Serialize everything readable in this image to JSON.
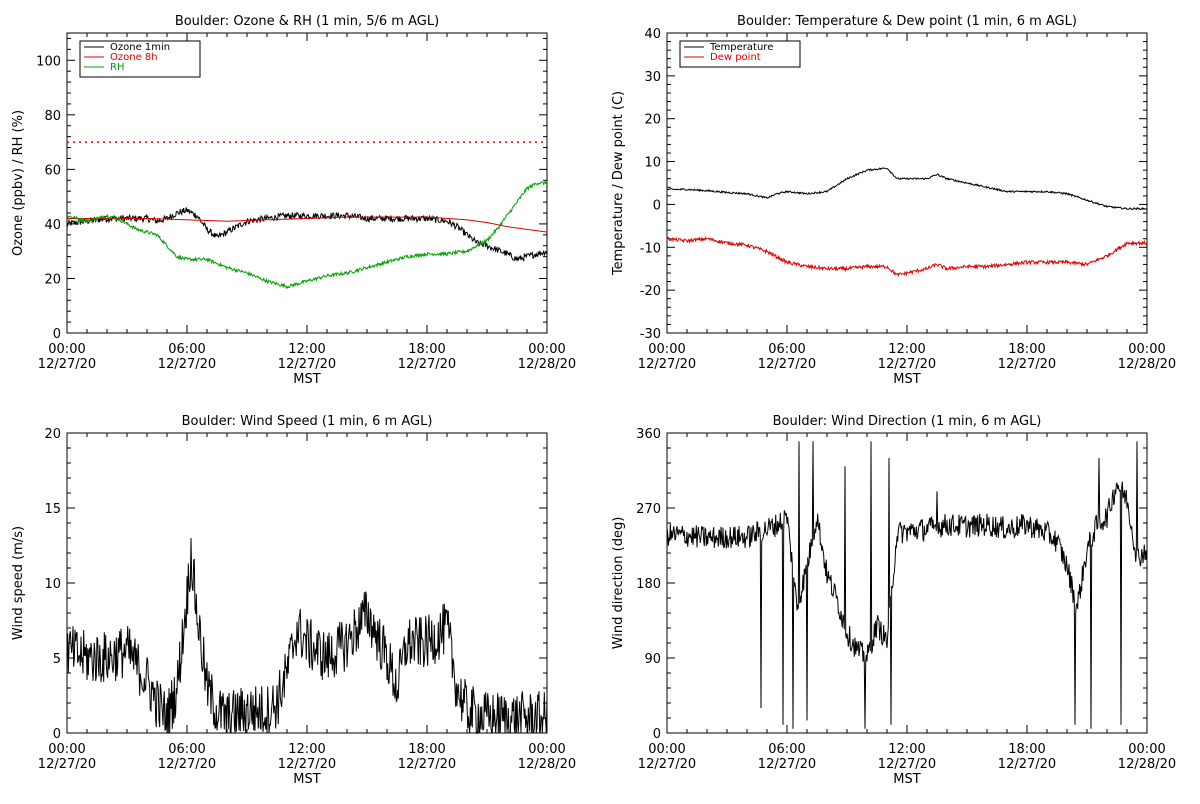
{
  "chart_data": [
    {
      "type": "line",
      "title": "Boulder: Ozone & RH (1 min, 5/6 m AGL)",
      "xlabel": "MST",
      "ylabel": "Ozone (ppbv) / RH (%)",
      "xlim": [
        "2020-12-27T00:00",
        "2020-12-28T00:00"
      ],
      "ylim": [
        0,
        110
      ],
      "yticks": [
        0,
        20,
        40,
        60,
        80,
        100
      ],
      "xtick_labels": [
        [
          "00:00",
          "12/27/20"
        ],
        [
          "06:00",
          "12/27/20"
        ],
        [
          "12:00",
          "12/27/20"
        ],
        [
          "18:00",
          "12/27/20"
        ],
        [
          "00:00",
          "12/28/20"
        ]
      ],
      "legend_position": "top-left",
      "reference_line": {
        "y": 70,
        "color": "#e00000",
        "style": "dotted"
      },
      "series": [
        {
          "name": "Ozone 1min",
          "color": "#000000",
          "noise": 1.2,
          "points": [
            [
              0,
              40
            ],
            [
              1,
              41
            ],
            [
              2,
              42
            ],
            [
              3,
              42
            ],
            [
              4,
              42
            ],
            [
              4.5,
              41
            ],
            [
              5,
              42
            ],
            [
              5.5,
              44
            ],
            [
              6,
              45
            ],
            [
              6.5,
              43
            ],
            [
              7,
              38
            ],
            [
              7.5,
              35
            ],
            [
              8,
              37
            ],
            [
              8.5,
              39
            ],
            [
              9,
              41
            ],
            [
              10,
              42
            ],
            [
              11,
              43
            ],
            [
              12,
              43
            ],
            [
              13,
              43
            ],
            [
              14,
              43
            ],
            [
              15,
              42
            ],
            [
              16,
              42
            ],
            [
              17,
              42
            ],
            [
              18,
              42
            ],
            [
              19,
              41
            ],
            [
              19.5,
              39
            ],
            [
              20,
              36
            ],
            [
              20.5,
              33
            ],
            [
              21,
              32
            ],
            [
              22,
              29
            ],
            [
              22.5,
              27
            ],
            [
              23,
              28
            ],
            [
              24,
              30
            ]
          ]
        },
        {
          "name": "Ozone 8h",
          "color": "#e00000",
          "noise": 0,
          "points": [
            [
              0,
              42
            ],
            [
              2,
              42
            ],
            [
              4,
              42
            ],
            [
              6,
              41.5
            ],
            [
              8,
              41
            ],
            [
              10,
              41.5
            ],
            [
              12,
              42
            ],
            [
              14,
              42.5
            ],
            [
              16,
              42.5
            ],
            [
              18,
              42.5
            ],
            [
              19,
              42
            ],
            [
              20,
              41.5
            ],
            [
              21,
              40.5
            ],
            [
              22,
              39
            ],
            [
              23,
              38
            ],
            [
              24,
              37
            ]
          ]
        },
        {
          "name": "RH",
          "color": "#00a000",
          "noise": 0.6,
          "points": [
            [
              0,
              43
            ],
            [
              1,
              41
            ],
            [
              2,
              43
            ],
            [
              2.5,
              42
            ],
            [
              3,
              40
            ],
            [
              3.5,
              38
            ],
            [
              4,
              37
            ],
            [
              4.5,
              36
            ],
            [
              5,
              32
            ],
            [
              5.5,
              28
            ],
            [
              6,
              27
            ],
            [
              7,
              27
            ],
            [
              8,
              24
            ],
            [
              9,
              22
            ],
            [
              10,
              19
            ],
            [
              11,
              17
            ],
            [
              12,
              19
            ],
            [
              13,
              21
            ],
            [
              14,
              22
            ],
            [
              15,
              24
            ],
            [
              16,
              26
            ],
            [
              17,
              28
            ],
            [
              18,
              29
            ],
            [
              19,
              29
            ],
            [
              20,
              30
            ],
            [
              21,
              34
            ],
            [
              21.5,
              38
            ],
            [
              22,
              43
            ],
            [
              22.5,
              48
            ],
            [
              23,
              53
            ],
            [
              23.5,
              55
            ],
            [
              24,
              55
            ]
          ]
        }
      ]
    },
    {
      "type": "line",
      "title": "Boulder: Temperature & Dew point (1 min, 6 m AGL)",
      "xlabel": "MST",
      "ylabel": "Temperature / Dew point (C)",
      "xlim": [
        "2020-12-27T00:00",
        "2020-12-28T00:00"
      ],
      "ylim": [
        -30,
        40
      ],
      "yticks": [
        -30,
        -20,
        -10,
        0,
        10,
        20,
        30,
        40
      ],
      "xtick_labels": [
        [
          "00:00",
          "12/27/20"
        ],
        [
          "06:00",
          "12/27/20"
        ],
        [
          "12:00",
          "12/27/20"
        ],
        [
          "18:00",
          "12/27/20"
        ],
        [
          "00:00",
          "12/28/20"
        ]
      ],
      "legend_position": "top-left",
      "series": [
        {
          "name": "Temperature",
          "color": "#000000",
          "noise": 0.2,
          "points": [
            [
              0,
              3.5
            ],
            [
              1,
              3.5
            ],
            [
              2,
              3.2
            ],
            [
              3,
              2.8
            ],
            [
              4,
              2.5
            ],
            [
              5,
              1.5
            ],
            [
              5.5,
              2.5
            ],
            [
              6,
              3
            ],
            [
              7,
              2.5
            ],
            [
              8,
              3
            ],
            [
              8.5,
              4.5
            ],
            [
              9,
              6
            ],
            [
              9.5,
              7
            ],
            [
              10,
              8
            ],
            [
              11,
              8.5
            ],
            [
              11.5,
              6
            ],
            [
              12,
              6
            ],
            [
              13,
              6
            ],
            [
              13.5,
              7
            ],
            [
              14,
              6
            ],
            [
              15,
              5
            ],
            [
              16,
              4
            ],
            [
              17,
              3
            ],
            [
              18,
              3
            ],
            [
              19,
              3
            ],
            [
              20,
              2.5
            ],
            [
              21,
              1
            ],
            [
              22,
              -0.5
            ],
            [
              23,
              -1
            ],
            [
              24,
              -1
            ]
          ]
        },
        {
          "name": "Dew point",
          "color": "#e00000",
          "noise": 0.4,
          "points": [
            [
              0,
              -8
            ],
            [
              1,
              -8.5
            ],
            [
              2,
              -8
            ],
            [
              3,
              -9
            ],
            [
              4,
              -9.5
            ],
            [
              5,
              -11
            ],
            [
              6,
              -13.5
            ],
            [
              7,
              -14.5
            ],
            [
              8,
              -15
            ],
            [
              9,
              -15
            ],
            [
              10,
              -14.5
            ],
            [
              11,
              -14.5
            ],
            [
              11.5,
              -16.5
            ],
            [
              12,
              -16
            ],
            [
              13,
              -15
            ],
            [
              13.5,
              -14
            ],
            [
              14,
              -15
            ],
            [
              15,
              -14.5
            ],
            [
              16,
              -14.5
            ],
            [
              17,
              -14
            ],
            [
              18,
              -13.5
            ],
            [
              19,
              -13.5
            ],
            [
              20,
              -13.5
            ],
            [
              21,
              -14
            ],
            [
              22,
              -12
            ],
            [
              23,
              -9
            ],
            [
              24,
              -9
            ]
          ]
        }
      ]
    },
    {
      "type": "line",
      "title": "Boulder: Wind Speed (1 min, 6 m AGL)",
      "xlabel": "MST",
      "ylabel": "Wind speed (m/s)",
      "xlim": [
        "2020-12-27T00:00",
        "2020-12-28T00:00"
      ],
      "ylim": [
        0,
        20
      ],
      "yticks": [
        0,
        5,
        10,
        15,
        20
      ],
      "xtick_labels": [
        [
          "00:00",
          "12/27/20"
        ],
        [
          "06:00",
          "12/27/20"
        ],
        [
          "12:00",
          "12/27/20"
        ],
        [
          "18:00",
          "12/27/20"
        ],
        [
          "00:00",
          "12/28/20"
        ]
      ],
      "series": [
        {
          "name": "",
          "color": "#000000",
          "noise": 1.8,
          "points": [
            [
              0,
              5.5
            ],
            [
              1,
              5
            ],
            [
              2,
              5
            ],
            [
              3,
              5.5
            ],
            [
              4,
              3.5
            ],
            [
              4.5,
              2
            ],
            [
              5,
              1
            ],
            [
              5.5,
              3
            ],
            [
              6,
              9
            ],
            [
              6.2,
              12
            ],
            [
              6.5,
              8
            ],
            [
              7,
              3
            ],
            [
              7.5,
              1.5
            ],
            [
              8,
              1
            ],
            [
              9,
              1.5
            ],
            [
              10,
              1.5
            ],
            [
              10.5,
              2
            ],
            [
              11,
              4
            ],
            [
              11.5,
              7
            ],
            [
              12,
              6
            ],
            [
              13,
              5
            ],
            [
              14,
              6
            ],
            [
              15,
              8
            ],
            [
              16,
              5
            ],
            [
              16.5,
              3
            ],
            [
              17,
              6
            ],
            [
              18,
              6
            ],
            [
              19,
              7
            ],
            [
              19.5,
              3
            ],
            [
              20,
              1.5
            ],
            [
              21,
              1
            ],
            [
              22,
              1
            ],
            [
              23,
              1
            ],
            [
              24,
              1
            ]
          ]
        }
      ]
    },
    {
      "type": "line",
      "title": "Boulder: Wind Direction (1 min, 6 m AGL)",
      "xlabel": "MST",
      "ylabel": "Wind direction (deg)",
      "xlim": [
        "2020-12-27T00:00",
        "2020-12-28T00:00"
      ],
      "ylim": [
        0,
        360
      ],
      "yticks": [
        0,
        90,
        180,
        270,
        360
      ],
      "xtick_labels": [
        [
          "00:00",
          "12/27/20"
        ],
        [
          "06:00",
          "12/27/20"
        ],
        [
          "12:00",
          "12/27/20"
        ],
        [
          "18:00",
          "12/27/20"
        ],
        [
          "00:00",
          "12/28/20"
        ]
      ],
      "series": [
        {
          "name": "",
          "color": "#000000",
          "noise": 14,
          "spikes": [
            [
              4.7,
              30
            ],
            [
              5.8,
              10
            ],
            [
              6.3,
              5
            ],
            [
              6.6,
              350
            ],
            [
              7,
              15
            ],
            [
              7.3,
              350
            ],
            [
              8.9,
              320
            ],
            [
              9.9,
              5
            ],
            [
              10.2,
              350
            ],
            [
              11.2,
              10
            ],
            [
              11.1,
              330
            ],
            [
              13.5,
              290
            ],
            [
              20.4,
              10
            ],
            [
              21.2,
              5
            ],
            [
              21.6,
              330
            ],
            [
              22.7,
              10
            ],
            [
              23.5,
              350
            ]
          ],
          "points": [
            [
              0,
              238
            ],
            [
              1,
              237
            ],
            [
              2,
              234
            ],
            [
              3,
              235
            ],
            [
              4,
              235
            ],
            [
              4.5,
              240
            ],
            [
              5,
              245
            ],
            [
              5.5,
              250
            ],
            [
              6,
              260
            ],
            [
              6.5,
              150
            ],
            [
              7,
              200
            ],
            [
              7.5,
              260
            ],
            [
              8,
              190
            ],
            [
              8.5,
              160
            ],
            [
              9,
              120
            ],
            [
              9.5,
              100
            ],
            [
              10,
              90
            ],
            [
              10.5,
              130
            ],
            [
              11,
              110
            ],
            [
              11.5,
              240
            ],
            [
              12,
              242
            ],
            [
              13,
              245
            ],
            [
              14,
              250
            ],
            [
              15,
              248
            ],
            [
              16,
              250
            ],
            [
              17,
              245
            ],
            [
              18,
              250
            ],
            [
              19,
              240
            ],
            [
              19.5,
              230
            ],
            [
              20,
              200
            ],
            [
              20.5,
              150
            ],
            [
              21,
              220
            ],
            [
              21.5,
              250
            ],
            [
              22,
              260
            ],
            [
              22.5,
              300
            ],
            [
              23,
              280
            ],
            [
              23.5,
              210
            ],
            [
              24,
              220
            ]
          ]
        }
      ]
    }
  ]
}
